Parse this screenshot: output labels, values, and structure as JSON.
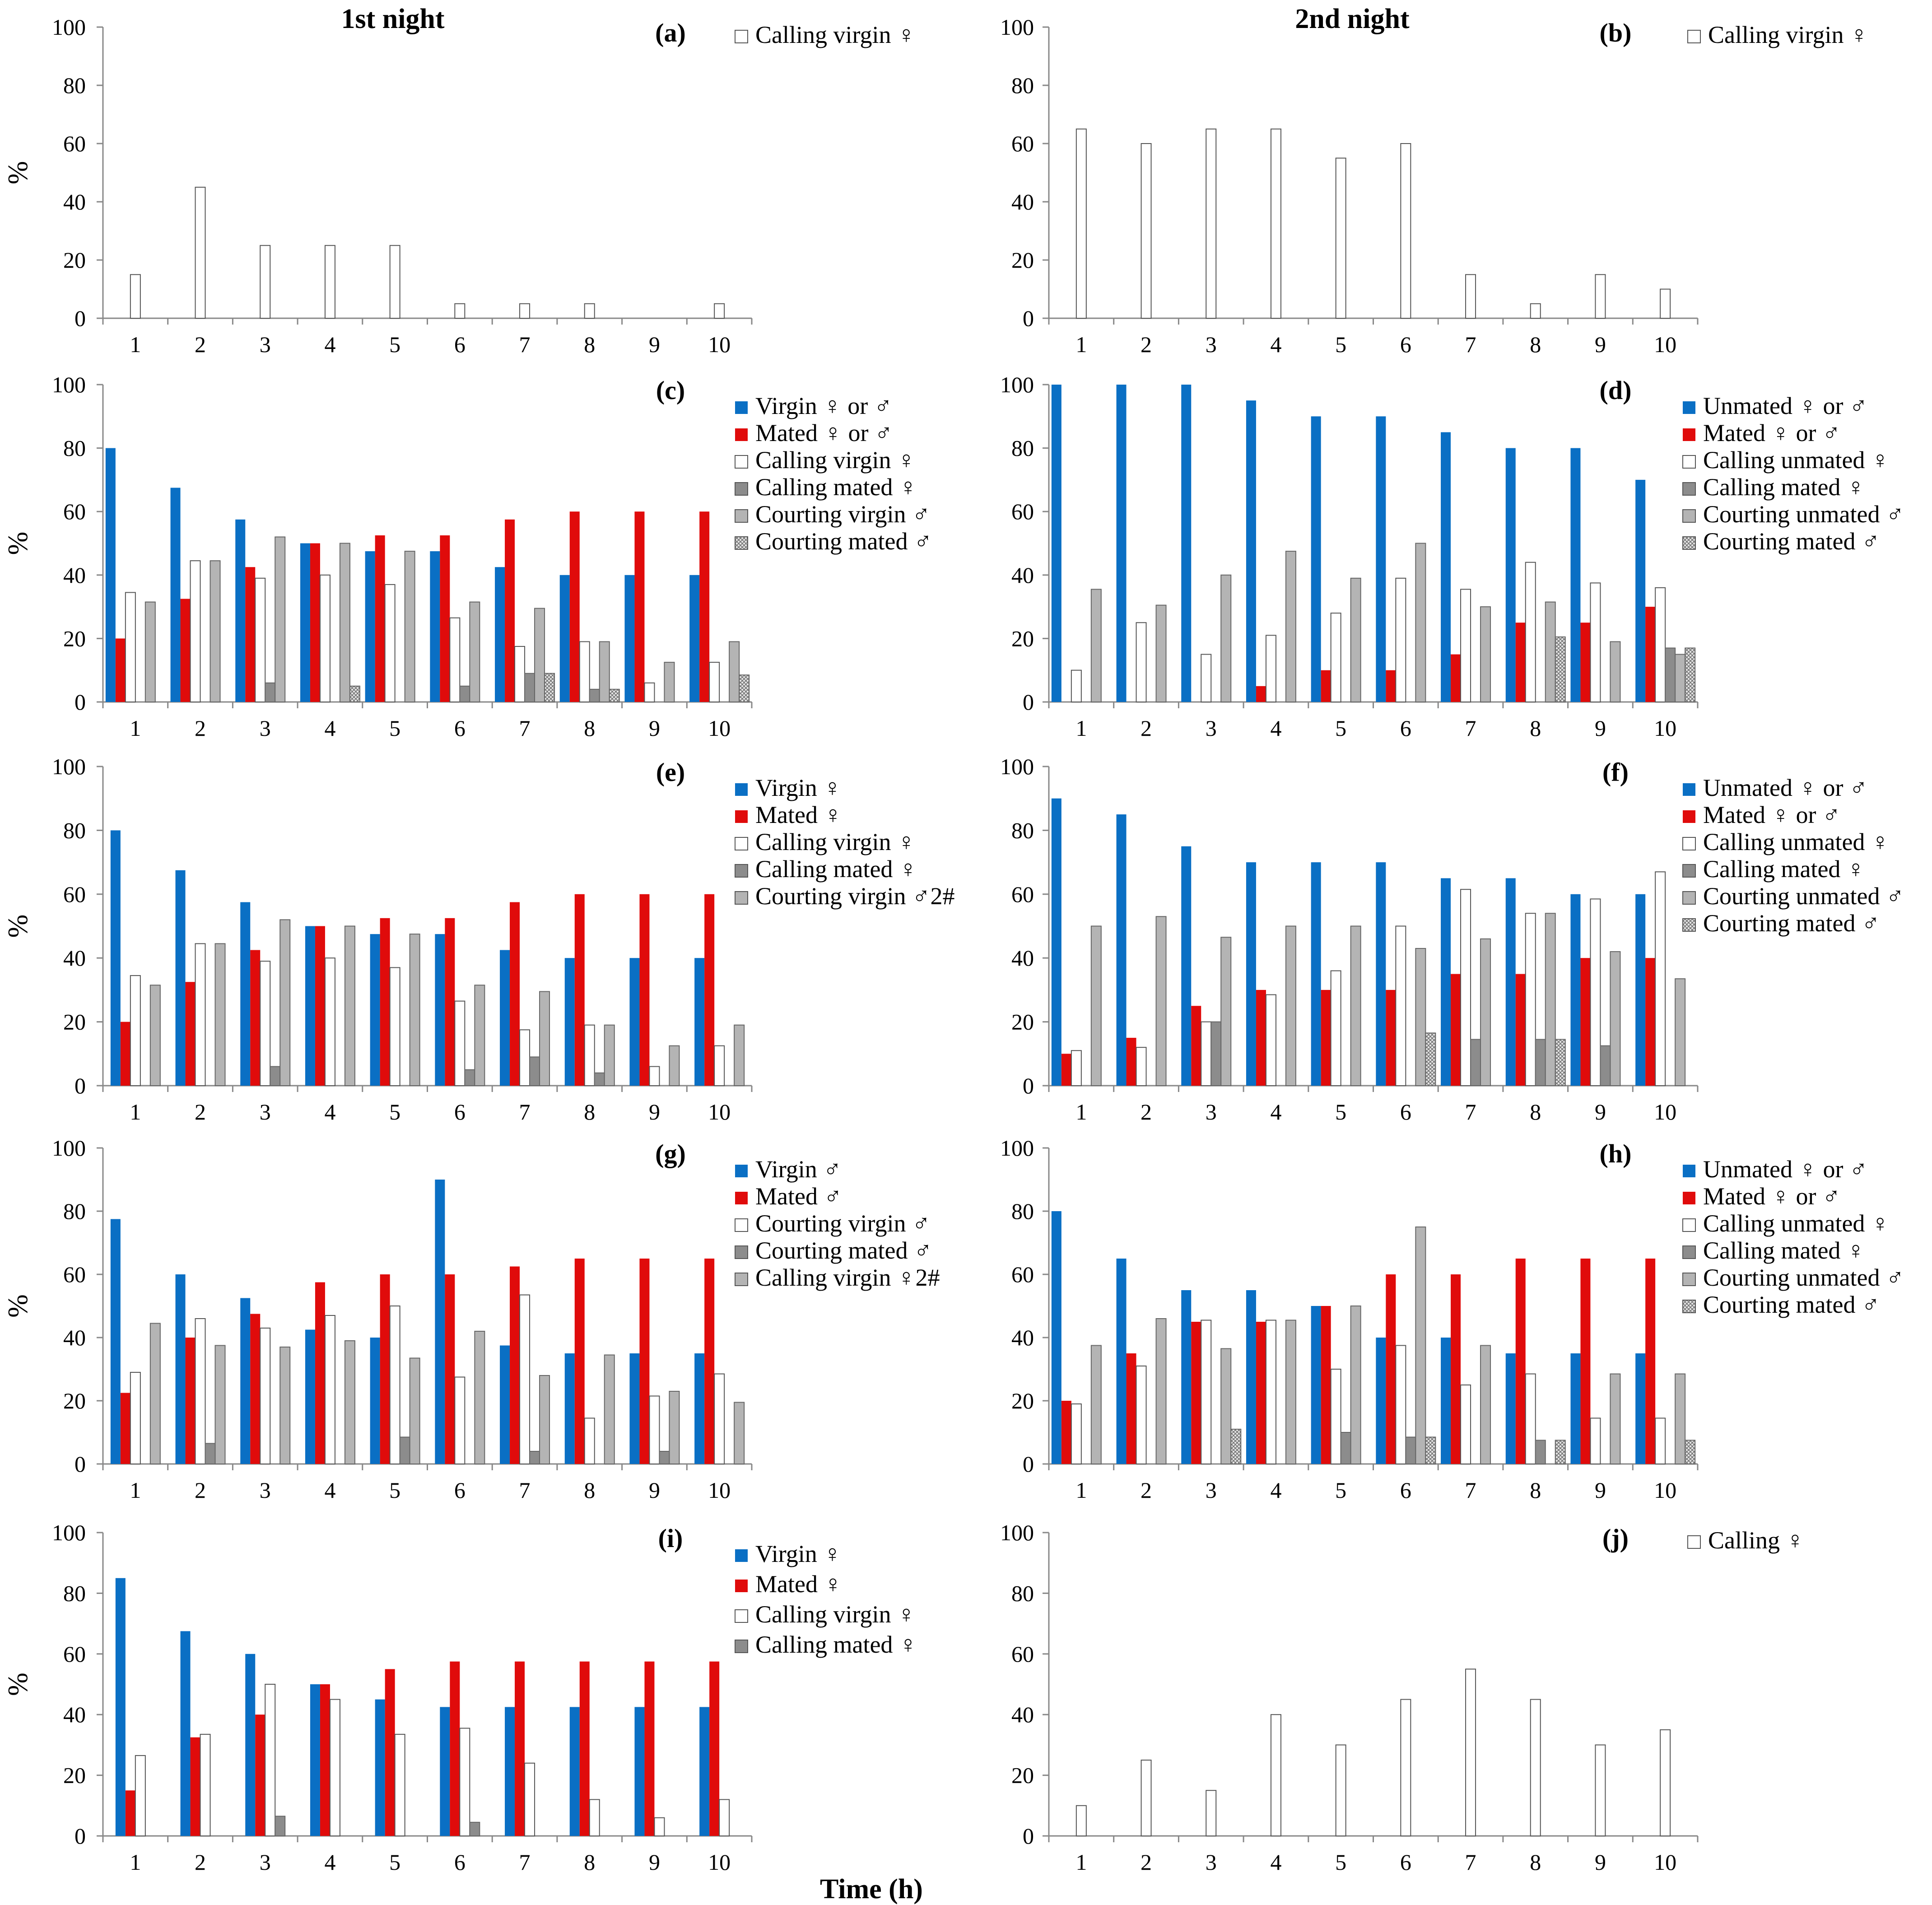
{
  "figure": {
    "night_labels": [
      "1st night",
      "2nd night"
    ],
    "x_axis_title": "Time (h)"
  },
  "colors": {
    "blue": "#0A6FC4",
    "red": "#E00B0B",
    "white": "#FFFFFF",
    "darkgray": "#8C8C8C",
    "lightgray": "#B4B4B4",
    "hatch": "#9A9A9A"
  },
  "chart_data": [
    {
      "type": "bar",
      "label": "(a)",
      "ylabel": "%",
      "ylim": [
        0,
        100
      ],
      "yticks": [
        0,
        20,
        40,
        60,
        80,
        100
      ],
      "categories": [
        "1",
        "2",
        "3",
        "4",
        "5",
        "6",
        "7",
        "8",
        "9",
        "10"
      ],
      "legend_position": "top-right",
      "series": [
        {
          "name": "Calling virgin ♀",
          "style": "white",
          "values": [
            15,
            45,
            25,
            25,
            25,
            5,
            5,
            5,
            0,
            5
          ]
        }
      ]
    },
    {
      "type": "bar",
      "label": "(b)",
      "ylabel": "",
      "ylim": [
        0,
        100
      ],
      "yticks": [
        0,
        20,
        40,
        60,
        80,
        100
      ],
      "categories": [
        "1",
        "2",
        "3",
        "4",
        "5",
        "6",
        "7",
        "8",
        "9",
        "10"
      ],
      "legend_position": "top-right",
      "series": [
        {
          "name": "Calling virgin ♀",
          "style": "white",
          "values": [
            65,
            60,
            65,
            65,
            55,
            60,
            15,
            5,
            15,
            10
          ]
        }
      ]
    },
    {
      "type": "bar",
      "label": "(c)",
      "ylabel": "%",
      "ylim": [
        0,
        100
      ],
      "yticks": [
        0,
        20,
        40,
        60,
        80,
        100
      ],
      "categories": [
        "1",
        "2",
        "3",
        "4",
        "5",
        "6",
        "7",
        "8",
        "9",
        "10"
      ],
      "legend_position": "top-right",
      "series": [
        {
          "name": "Virgin ♀ or ♂",
          "style": "blue",
          "values": [
            80,
            67.5,
            57.5,
            50,
            47.5,
            47.5,
            42.5,
            40,
            40,
            40
          ]
        },
        {
          "name": "Mated ♀ or ♂",
          "style": "red",
          "values": [
            20,
            32.5,
            42.5,
            50,
            52.5,
            52.5,
            57.5,
            60,
            60,
            60
          ]
        },
        {
          "name": "Calling virgin ♀",
          "style": "white",
          "values": [
            34.5,
            44.5,
            39,
            40,
            37,
            26.5,
            17.5,
            19,
            6,
            12.5
          ]
        },
        {
          "name": "Calling mated ♀",
          "style": "darkgray",
          "values": [
            0,
            0,
            6,
            0,
            0,
            5,
            9,
            4,
            0,
            0
          ]
        },
        {
          "name": "Courting virgin ♂",
          "style": "lightgray",
          "values": [
            31.5,
            44.5,
            52,
            50,
            47.5,
            31.5,
            29.5,
            19,
            12.5,
            19
          ]
        },
        {
          "name": "Courting mated ♂",
          "style": "hatch",
          "values": [
            0,
            0,
            0,
            5,
            0,
            0,
            9,
            4,
            0,
            8.5
          ]
        }
      ]
    },
    {
      "type": "bar",
      "label": "(d)",
      "ylabel": "",
      "ylim": [
        0,
        100
      ],
      "yticks": [
        0,
        20,
        40,
        60,
        80,
        100
      ],
      "categories": [
        "1",
        "2",
        "3",
        "4",
        "5",
        "6",
        "7",
        "8",
        "9",
        "10"
      ],
      "legend_position": "top-right",
      "series": [
        {
          "name": "Unmated ♀ or ♂",
          "style": "blue",
          "values": [
            100,
            100,
            100,
            95,
            90,
            90,
            85,
            80,
            80,
            70
          ]
        },
        {
          "name": "Mated ♀ or ♂",
          "style": "red",
          "values": [
            0,
            0,
            0,
            5,
            10,
            10,
            15,
            25,
            25,
            30
          ]
        },
        {
          "name": "Calling unmated ♀",
          "style": "white",
          "values": [
            10,
            25,
            15,
            21,
            28,
            39,
            35.5,
            44,
            37.5,
            36
          ]
        },
        {
          "name": "Calling mated ♀",
          "style": "darkgray",
          "values": [
            0,
            0,
            0,
            0,
            0,
            0,
            0,
            0,
            0,
            17
          ]
        },
        {
          "name": "Courting unmated ♂",
          "style": "lightgray",
          "values": [
            35.5,
            30.5,
            40,
            47.5,
            39,
            50,
            30,
            31.5,
            19,
            15
          ]
        },
        {
          "name": "Courting mated ♂",
          "style": "hatch",
          "values": [
            0,
            0,
            0,
            0,
            0,
            0,
            0,
            20.5,
            0,
            17
          ]
        }
      ]
    },
    {
      "type": "bar",
      "label": "(e)",
      "ylabel": "%",
      "ylim": [
        0,
        100
      ],
      "yticks": [
        0,
        20,
        40,
        60,
        80,
        100
      ],
      "categories": [
        "1",
        "2",
        "3",
        "4",
        "5",
        "6",
        "7",
        "8",
        "9",
        "10"
      ],
      "legend_position": "top-right",
      "series": [
        {
          "name": "Virgin ♀",
          "style": "blue",
          "values": [
            80,
            67.5,
            57.5,
            50,
            47.5,
            47.5,
            42.5,
            40,
            40,
            40
          ]
        },
        {
          "name": "Mated ♀",
          "style": "red",
          "values": [
            20,
            32.5,
            42.5,
            50,
            52.5,
            52.5,
            57.5,
            60,
            60,
            60
          ]
        },
        {
          "name": "Calling virgin ♀",
          "style": "white",
          "values": [
            34.5,
            44.5,
            39,
            40,
            37,
            26.5,
            17.5,
            19,
            6,
            12.5
          ]
        },
        {
          "name": "Calling mated ♀",
          "style": "darkgray",
          "values": [
            0,
            0,
            6,
            0,
            0,
            5,
            9,
            4,
            0,
            0
          ]
        },
        {
          "name": "Courting virgin ♂2#",
          "style": "lightgray",
          "values": [
            31.5,
            44.5,
            52,
            50,
            47.5,
            31.5,
            29.5,
            19,
            12.5,
            19
          ]
        }
      ]
    },
    {
      "type": "bar",
      "label": "(f)",
      "ylabel": "",
      "ylim": [
        0,
        100
      ],
      "yticks": [
        0,
        20,
        40,
        60,
        80,
        100
      ],
      "categories": [
        "1",
        "2",
        "3",
        "4",
        "5",
        "6",
        "7",
        "8",
        "9",
        "10"
      ],
      "legend_position": "top-right",
      "series": [
        {
          "name": "Unmated ♀ or ♂",
          "style": "blue",
          "values": [
            90,
            85,
            75,
            70,
            70,
            70,
            65,
            65,
            60,
            60
          ]
        },
        {
          "name": "Mated ♀ or ♂",
          "style": "red",
          "values": [
            10,
            15,
            25,
            30,
            30,
            30,
            35,
            35,
            40,
            40
          ]
        },
        {
          "name": "Calling unmated ♀",
          "style": "white",
          "values": [
            11,
            12,
            20,
            28.5,
            36,
            50,
            61.5,
            54,
            58.5,
            67
          ]
        },
        {
          "name": "Calling mated ♀",
          "style": "darkgray",
          "values": [
            0,
            0,
            20,
            0,
            0,
            0,
            14.5,
            14.5,
            12.5,
            0
          ]
        },
        {
          "name": "Courting unmated ♂",
          "style": "lightgray",
          "values": [
            50,
            53,
            46.5,
            50,
            50,
            43,
            46,
            54,
            42,
            33.5
          ]
        },
        {
          "name": "Courting mated ♂",
          "style": "hatch",
          "values": [
            0,
            0,
            0,
            0,
            0,
            16.5,
            0,
            14.5,
            0,
            0
          ]
        }
      ]
    },
    {
      "type": "bar",
      "label": "(g)",
      "ylabel": "%",
      "ylim": [
        0,
        100
      ],
      "yticks": [
        0,
        20,
        40,
        60,
        80,
        100
      ],
      "categories": [
        "1",
        "2",
        "3",
        "4",
        "5",
        "6",
        "7",
        "8",
        "9",
        "10"
      ],
      "legend_position": "top-right",
      "series": [
        {
          "name": "Virgin ♂",
          "style": "blue",
          "values": [
            77.5,
            60,
            52.5,
            42.5,
            40,
            90,
            37.5,
            35,
            35,
            35
          ]
        },
        {
          "name": "Mated ♂",
          "style": "red",
          "values": [
            22.5,
            40,
            47.5,
            57.5,
            60,
            60,
            62.5,
            65,
            65,
            65
          ]
        },
        {
          "name": "Courting virgin ♂",
          "style": "white",
          "values": [
            29,
            46,
            43,
            47,
            50,
            27.5,
            53.5,
            14.5,
            21.5,
            28.5
          ]
        },
        {
          "name": "Courting mated ♂",
          "style": "darkgray",
          "values": [
            0,
            6.5,
            0,
            0,
            8.5,
            0,
            4,
            0,
            4,
            0
          ]
        },
        {
          "name": "Calling virgin ♀2#",
          "style": "lightgray",
          "values": [
            44.5,
            37.5,
            37,
            39,
            33.5,
            42,
            28,
            34.5,
            23,
            19.5
          ]
        }
      ]
    },
    {
      "type": "bar",
      "label": "(h)",
      "ylabel": "",
      "ylim": [
        0,
        100
      ],
      "yticks": [
        0,
        20,
        40,
        60,
        80,
        100
      ],
      "categories": [
        "1",
        "2",
        "3",
        "4",
        "5",
        "6",
        "7",
        "8",
        "9",
        "10"
      ],
      "legend_position": "top-right",
      "series": [
        {
          "name": "Unmated ♀ or ♂",
          "style": "blue",
          "values": [
            80,
            65,
            55,
            55,
            50,
            40,
            40,
            35,
            35,
            35
          ]
        },
        {
          "name": "Mated ♀ or ♂",
          "style": "red",
          "values": [
            20,
            35,
            45,
            45,
            50,
            60,
            60,
            65,
            65,
            65
          ]
        },
        {
          "name": "Calling unmated ♀",
          "style": "white",
          "values": [
            19,
            31,
            45.5,
            45.5,
            30,
            37.5,
            25,
            28.5,
            14.5,
            14.5
          ]
        },
        {
          "name": "Calling mated ♀",
          "style": "darkgray",
          "values": [
            0,
            0,
            0,
            0,
            10,
            8.5,
            0,
            7.5,
            0,
            0
          ]
        },
        {
          "name": "Courting unmated ♂",
          "style": "lightgray",
          "values": [
            37.5,
            46,
            36.5,
            45.5,
            50,
            75,
            37.5,
            0,
            28.5,
            28.5
          ]
        },
        {
          "name": "Courting mated ♂",
          "style": "hatch",
          "values": [
            0,
            0,
            11,
            0,
            0,
            8.5,
            0,
            7.5,
            0,
            7.5
          ]
        }
      ]
    },
    {
      "type": "bar",
      "label": "(i)",
      "ylabel": "%",
      "ylim": [
        0,
        100
      ],
      "yticks": [
        0,
        20,
        40,
        60,
        80,
        100
      ],
      "categories": [
        "1",
        "2",
        "3",
        "4",
        "5",
        "6",
        "7",
        "8",
        "9",
        "10"
      ],
      "legend_position": "top-right",
      "series": [
        {
          "name": "Virgin ♀",
          "style": "blue",
          "values": [
            85,
            67.5,
            60,
            50,
            45,
            42.5,
            42.5,
            42.5,
            42.5,
            42.5
          ]
        },
        {
          "name": "Mated ♀",
          "style": "red",
          "values": [
            15,
            32.5,
            40,
            50,
            55,
            57.5,
            57.5,
            57.5,
            57.5,
            57.5
          ]
        },
        {
          "name": "Calling virgin ♀",
          "style": "white",
          "values": [
            26.5,
            33.5,
            50,
            45,
            33.5,
            35.5,
            24,
            12,
            6,
            12
          ]
        },
        {
          "name": "Calling mated ♀",
          "style": "darkgray",
          "values": [
            0,
            0,
            6.5,
            0,
            0,
            4.5,
            0,
            0,
            0,
            0
          ]
        }
      ]
    },
    {
      "type": "bar",
      "label": "(j)",
      "ylabel": "",
      "ylim": [
        0,
        100
      ],
      "yticks": [
        0,
        20,
        40,
        60,
        80,
        100
      ],
      "categories": [
        "1",
        "2",
        "3",
        "4",
        "5",
        "6",
        "7",
        "8",
        "9",
        "10"
      ],
      "legend_position": "top-right",
      "series": [
        {
          "name": "Calling ♀",
          "style": "white",
          "values": [
            10,
            25,
            15,
            40,
            30,
            45,
            55,
            45,
            30,
            35
          ]
        }
      ]
    }
  ]
}
